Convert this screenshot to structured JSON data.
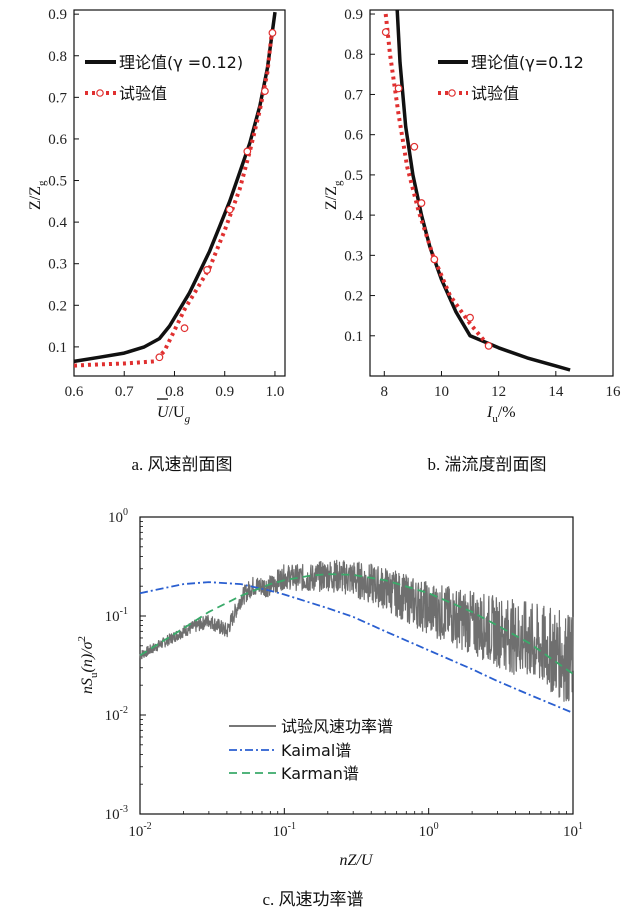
{
  "chart_data": [
    {
      "type": "line",
      "caption": "a. 风速剖面图",
      "xlabel_main": "U",
      "xlabel_den": "/U",
      "xlabel_sub": "g",
      "ylabel_main": "Z/Z",
      "ylabel_sub": "g",
      "xlim": [
        0.6,
        1.02
      ],
      "ylim": [
        0.03,
        0.91
      ],
      "xticks": [
        0.6,
        0.7,
        0.8,
        0.9,
        1.0
      ],
      "xtick_labels": [
        "0.6",
        "0.7",
        "0.8",
        "0.9",
        "1.0"
      ],
      "yticks": [
        0.1,
        0.2,
        0.3,
        0.4,
        0.5,
        0.6,
        0.7,
        0.8,
        0.9
      ],
      "ytick_labels": [
        "0.1",
        "0.2",
        "0.3",
        "0.4",
        "0.5",
        "0.6",
        "0.7",
        "0.8",
        "0.9"
      ],
      "legend": [
        "理论值(γ =0.12)",
        "试验值"
      ],
      "series": [
        {
          "name": "理论值(γ =0.12)",
          "style": "solid-black",
          "x": [
            0.6,
            0.65,
            0.7,
            0.74,
            0.77,
            0.79,
            0.81,
            0.83,
            0.85,
            0.87,
            0.89,
            0.91,
            0.93,
            0.95,
            0.97,
            0.985,
            1.0
          ],
          "y": [
            0.065,
            0.075,
            0.085,
            0.1,
            0.12,
            0.15,
            0.19,
            0.23,
            0.28,
            0.33,
            0.39,
            0.45,
            0.52,
            0.59,
            0.68,
            0.77,
            0.905
          ]
        },
        {
          "name": "试验值",
          "style": "dotted-red",
          "x": [
            0.6,
            0.65,
            0.7,
            0.76,
            0.78,
            0.8,
            0.82,
            0.85,
            0.87,
            0.9,
            0.93,
            0.95,
            0.97,
            0.985,
            0.995
          ],
          "y": [
            0.055,
            0.058,
            0.06,
            0.065,
            0.09,
            0.14,
            0.19,
            0.25,
            0.29,
            0.38,
            0.48,
            0.57,
            0.67,
            0.76,
            0.87
          ]
        },
        {
          "name": "试验值-markers",
          "style": "markers",
          "x": [
            0.77,
            0.82,
            0.865,
            0.91,
            0.945,
            0.98,
            0.995
          ],
          "y": [
            0.075,
            0.145,
            0.285,
            0.43,
            0.57,
            0.715,
            0.855
          ]
        }
      ]
    },
    {
      "type": "line",
      "caption": "b. 湍流度剖面图",
      "xlabel_main": "I",
      "xlabel_sub": "u",
      "xlabel_tail": "/%",
      "ylabel_main": "Z/Z",
      "ylabel_sub": "g",
      "xlim": [
        7.5,
        16
      ],
      "ylim": [
        0.0,
        0.91
      ],
      "xticks": [
        8,
        10,
        12,
        14,
        16
      ],
      "xtick_labels": [
        "8",
        "10",
        "12",
        "14",
        "16"
      ],
      "yticks": [
        0.1,
        0.2,
        0.3,
        0.4,
        0.5,
        0.6,
        0.7,
        0.8,
        0.9
      ],
      "ytick_labels": [
        "0.1",
        "0.2",
        "0.3",
        "0.4",
        "0.5",
        "0.6",
        "0.7",
        "0.8",
        "0.9"
      ],
      "legend": [
        "理论值(γ=0.12",
        "试验值"
      ],
      "series": [
        {
          "name": "理论值(γ=0.12",
          "style": "solid-black",
          "x": [
            8.45,
            8.55,
            8.75,
            9.0,
            9.3,
            9.6,
            10.0,
            10.5,
            11.0,
            12.0,
            13.0,
            14.0,
            14.5
          ],
          "y": [
            0.91,
            0.78,
            0.62,
            0.5,
            0.4,
            0.32,
            0.24,
            0.16,
            0.1,
            0.07,
            0.045,
            0.025,
            0.015
          ]
        },
        {
          "name": "试验值",
          "style": "dotted-red",
          "x": [
            8.05,
            8.2,
            8.5,
            8.8,
            9.2,
            9.7,
            10.3,
            11.0,
            11.7
          ],
          "y": [
            0.9,
            0.8,
            0.65,
            0.52,
            0.41,
            0.3,
            0.2,
            0.13,
            0.07
          ]
        },
        {
          "name": "试验值-markers",
          "style": "markers",
          "x": [
            8.05,
            8.5,
            9.05,
            9.3,
            9.75,
            11.0,
            11.65
          ],
          "y": [
            0.855,
            0.715,
            0.57,
            0.43,
            0.29,
            0.145,
            0.075
          ]
        }
      ]
    },
    {
      "type": "line",
      "scale": "log-log",
      "caption": "c. 风速功率谱",
      "xlabel_main": "nZ/U",
      "ylabel_main": "nS",
      "ylabel_sub": "u",
      "ylabel_tail": "(n)/σ",
      "ylabel_sup": "2",
      "xlim": [
        0.01,
        10
      ],
      "ylim": [
        0.001,
        1
      ],
      "xticks": [
        0.01,
        0.1,
        1,
        10
      ],
      "xtick_labels": [
        {
          "base": "10",
          "exp": "-2"
        },
        {
          "base": "10",
          "exp": "-1"
        },
        {
          "base": "10",
          "exp": "0"
        },
        {
          "base": "10",
          "exp": "1"
        }
      ],
      "yticks": [
        0.001,
        0.01,
        0.1,
        1
      ],
      "ytick_labels": [
        {
          "base": "10",
          "exp": "-3"
        },
        {
          "base": "10",
          "exp": "-2"
        },
        {
          "base": "10",
          "exp": "-1"
        },
        {
          "base": "10",
          "exp": "0"
        }
      ],
      "legend": [
        "试验风速功率谱",
        "Kaimal谱",
        "Karman谱"
      ],
      "series": [
        {
          "name": "试验风速功率谱",
          "style": "noisy-gray",
          "x": [
            0.01,
            0.015,
            0.02,
            0.03,
            0.04,
            0.05,
            0.06,
            0.08,
            0.1,
            0.15,
            0.2,
            0.3,
            0.5,
            0.7,
            1,
            2,
            3,
            5,
            7,
            10
          ],
          "y": [
            0.04,
            0.055,
            0.07,
            0.09,
            0.07,
            0.15,
            0.2,
            0.2,
            0.25,
            0.24,
            0.26,
            0.24,
            0.19,
            0.15,
            0.12,
            0.085,
            0.07,
            0.055,
            0.045,
            0.035
          ]
        },
        {
          "name": "Kaimal谱",
          "style": "dashdot-blue",
          "x": [
            0.01,
            0.02,
            0.03,
            0.05,
            0.08,
            0.1,
            0.2,
            0.3,
            0.5,
            1,
            2,
            3,
            5,
            10
          ],
          "y": [
            0.17,
            0.21,
            0.22,
            0.21,
            0.18,
            0.165,
            0.12,
            0.098,
            0.07,
            0.045,
            0.029,
            0.022,
            0.016,
            0.0105
          ]
        },
        {
          "name": "Karman谱",
          "style": "dashed-green",
          "x": [
            0.01,
            0.02,
            0.03,
            0.05,
            0.08,
            0.1,
            0.15,
            0.2,
            0.3,
            0.5,
            1,
            2,
            3,
            5,
            10
          ],
          "y": [
            0.04,
            0.075,
            0.11,
            0.16,
            0.21,
            0.23,
            0.255,
            0.265,
            0.26,
            0.23,
            0.17,
            0.11,
            0.08,
            0.053,
            0.026
          ]
        }
      ]
    }
  ]
}
